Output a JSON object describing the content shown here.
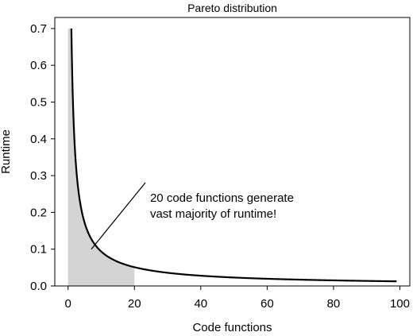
{
  "chart_data": {
    "type": "area",
    "title": "Pareto distribution",
    "xlabel": "Code functions",
    "ylabel": "Runtime",
    "xlim": [
      -4,
      103
    ],
    "ylim": [
      0,
      0.73
    ],
    "xticks": [
      0,
      20,
      40,
      60,
      80,
      100
    ],
    "yticks": [
      0.0,
      0.1,
      0.2,
      0.3,
      0.4,
      0.5,
      0.6,
      0.7
    ],
    "xtick_labels": [
      "0",
      "20",
      "40",
      "60",
      "80",
      "100"
    ],
    "ytick_labels": [
      "0.0",
      "0.1",
      "0.2",
      "0.3",
      "0.4",
      "0.5",
      "0.6",
      "0.7"
    ],
    "grid": false,
    "series": [
      {
        "curve": "y = 0.7 * x^(-0.874)",
        "x_range": [
          1,
          99
        ],
        "line_color": "#000000",
        "shaded_range": [
          0,
          20
        ],
        "shade_color": "#d4d4d4"
      }
    ],
    "annotation": {
      "lines": [
        "20 code functions generate",
        "vast majority of runtime!"
      ],
      "pointer_target": [
        7,
        0.1
      ],
      "text_anchor": [
        24,
        0.27
      ]
    }
  }
}
